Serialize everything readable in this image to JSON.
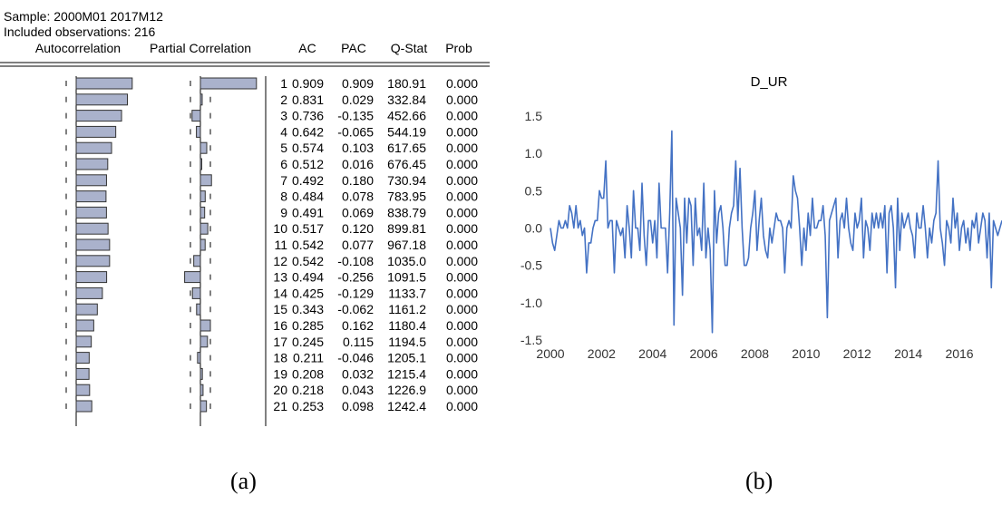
{
  "panel_labels": {
    "a": "(a)",
    "b": "(b)"
  },
  "correlogram": {
    "sample_line": "Sample: 2000M01 2017M12",
    "obs_line": "Included observations: 216",
    "headers": {
      "autocorrelation": "Autocorrelation",
      "partial": "Partial Correlation",
      "ac": "AC",
      "pac": "PAC",
      "qstat": "Q-Stat",
      "prob": "Prob"
    },
    "rows": [
      {
        "lag": "1",
        "ac": "0.909",
        "pac": "0.909",
        "q": "180.91",
        "prob": "0.000"
      },
      {
        "lag": "2",
        "ac": "0.831",
        "pac": "0.029",
        "q": "332.84",
        "prob": "0.000"
      },
      {
        "lag": "3",
        "ac": "0.736",
        "pac": "-0.135",
        "q": "452.66",
        "prob": "0.000"
      },
      {
        "lag": "4",
        "ac": "0.642",
        "pac": "-0.065",
        "q": "544.19",
        "prob": "0.000"
      },
      {
        "lag": "5",
        "ac": "0.574",
        "pac": "0.103",
        "q": "617.65",
        "prob": "0.000"
      },
      {
        "lag": "6",
        "ac": "0.512",
        "pac": "0.016",
        "q": "676.45",
        "prob": "0.000"
      },
      {
        "lag": "7",
        "ac": "0.492",
        "pac": "0.180",
        "q": "730.94",
        "prob": "0.000"
      },
      {
        "lag": "8",
        "ac": "0.484",
        "pac": "0.078",
        "q": "783.95",
        "prob": "0.000"
      },
      {
        "lag": "9",
        "ac": "0.491",
        "pac": "0.069",
        "q": "838.79",
        "prob": "0.000"
      },
      {
        "lag": "10",
        "ac": "0.517",
        "pac": "0.120",
        "q": "899.81",
        "prob": "0.000"
      },
      {
        "lag": "11",
        "ac": "0.542",
        "pac": "0.077",
        "q": "967.18",
        "prob": "0.000"
      },
      {
        "lag": "12",
        "ac": "0.542",
        "pac": "-0.108",
        "q": "1035.0",
        "prob": "0.000"
      },
      {
        "lag": "13",
        "ac": "0.494",
        "pac": "-0.256",
        "q": "1091.5",
        "prob": "0.000"
      },
      {
        "lag": "14",
        "ac": "0.425",
        "pac": "-0.129",
        "q": "1133.7",
        "prob": "0.000"
      },
      {
        "lag": "15",
        "ac": "0.343",
        "pac": "-0.062",
        "q": "1161.2",
        "prob": "0.000"
      },
      {
        "lag": "16",
        "ac": "0.285",
        "pac": "0.162",
        "q": "1180.4",
        "prob": "0.000"
      },
      {
        "lag": "17",
        "ac": "0.245",
        "pac": "0.115",
        "q": "1194.5",
        "prob": "0.000"
      },
      {
        "lag": "18",
        "ac": "0.211",
        "pac": "-0.046",
        "q": "1205.1",
        "prob": "0.000"
      },
      {
        "lag": "19",
        "ac": "0.208",
        "pac": "0.032",
        "q": "1215.4",
        "prob": "0.000"
      },
      {
        "lag": "20",
        "ac": "0.218",
        "pac": "0.043",
        "q": "1226.9",
        "prob": "0.000"
      },
      {
        "lag": "21",
        "ac": "0.253",
        "pac": "0.098",
        "q": "1242.4",
        "prob": "0.000"
      }
    ],
    "colors": {
      "bar_fill": "#aab2cc",
      "bar_stroke": "#333333"
    }
  },
  "chart_data": [
    {
      "type": "bar",
      "orientation": "horizontal",
      "series": [
        {
          "name": "Autocorrelation",
          "values": [
            0.909,
            0.831,
            0.736,
            0.642,
            0.574,
            0.512,
            0.492,
            0.484,
            0.491,
            0.517,
            0.542,
            0.542,
            0.494,
            0.425,
            0.343,
            0.285,
            0.245,
            0.211,
            0.208,
            0.218,
            0.253
          ]
        },
        {
          "name": "Partial Correlation",
          "values": [
            0.909,
            0.029,
            -0.135,
            -0.065,
            0.103,
            0.016,
            0.18,
            0.078,
            0.069,
            0.12,
            0.077,
            -0.108,
            -0.256,
            -0.129,
            -0.062,
            0.162,
            0.115,
            -0.046,
            0.032,
            0.043,
            0.098
          ]
        }
      ],
      "categories": [
        "1",
        "2",
        "3",
        "4",
        "5",
        "6",
        "7",
        "8",
        "9",
        "10",
        "11",
        "12",
        "13",
        "14",
        "15",
        "16",
        "17",
        "18",
        "19",
        "20",
        "21"
      ]
    },
    {
      "type": "line",
      "title": "D_UR",
      "x_start": "2000M01",
      "x_end": "2017M12",
      "xticks": [
        "2000",
        "2002",
        "2004",
        "2006",
        "2008",
        "2010",
        "2012",
        "2014",
        "2016"
      ],
      "yticks": [
        "1.5",
        "1.0",
        "0.5",
        "0.0",
        "-0.5",
        "-1.0",
        "-1.5"
      ],
      "ylim": [
        -1.5,
        1.5
      ],
      "grid": false,
      "color": "#4472c4",
      "series": [
        {
          "values": [
            0.0,
            -0.2,
            -0.3,
            -0.1,
            0.1,
            0.0,
            0.0,
            0.1,
            0.0,
            0.3,
            0.2,
            0.0,
            0.3,
            0.0,
            0.1,
            -0.1,
            0.0,
            -0.6,
            -0.2,
            -0.2,
            0.0,
            0.1,
            0.1,
            0.5,
            0.4,
            0.4,
            0.9,
            0.0,
            0.1,
            0.1,
            -0.6,
            0.1,
            0.0,
            -0.1,
            0.0,
            -0.4,
            0.3,
            0.0,
            -0.4,
            0.5,
            0.0,
            0.0,
            -0.3,
            0.6,
            -0.1,
            -0.5,
            0.1,
            0.1,
            -0.2,
            0.1,
            -0.4,
            0.6,
            0.0,
            0.0,
            0.0,
            -0.6,
            0.2,
            1.3,
            -1.3,
            0.4,
            0.2,
            0.0,
            -0.9,
            0.4,
            -0.2,
            0.4,
            0.3,
            -0.5,
            0.4,
            -0.1,
            0.0,
            -0.3,
            0.6,
            -0.4,
            0.0,
            -0.3,
            -1.4,
            0.5,
            -0.2,
            0.2,
            0.3,
            0.0,
            -0.5,
            -0.5,
            0.0,
            0.2,
            0.3,
            0.9,
            0.1,
            0.8,
            0.0,
            -0.5,
            -0.5,
            -0.4,
            0.0,
            0.2,
            0.5,
            -0.3,
            0.1,
            0.4,
            -0.1,
            -0.3,
            -0.4,
            0.0,
            -0.2,
            0.0,
            0.2,
            0.1,
            0.1,
            0.0,
            -0.6,
            0.0,
            0.1,
            0.0,
            0.7,
            0.5,
            0.4,
            0.0,
            -0.5,
            0.0,
            -0.3,
            0.2,
            -0.1,
            0.4,
            0.0,
            0.0,
            0.1,
            0.1,
            0.3,
            -0.1,
            -1.2,
            0.1,
            0.2,
            0.3,
            0.4,
            -0.4,
            0.1,
            0.2,
            0.0,
            0.4,
            0.0,
            -0.2,
            -0.3,
            0.2,
            0.0,
            0.1,
            0.4,
            -0.4,
            0.1,
            0.0,
            -0.3,
            0.2,
            0.0,
            0.2,
            0.0,
            0.2,
            0.0,
            0.3,
            -0.6,
            0.2,
            0.3,
            0.0,
            -0.8,
            0.4,
            -0.3,
            0.2,
            0.0,
            0.1,
            0.2,
            0.0,
            -0.1,
            -0.4,
            0.2,
            0.0,
            0.0,
            0.3,
            0.0,
            -0.4,
            0.0,
            -0.2,
            0.1,
            0.2,
            0.9,
            0.0,
            -0.2,
            -0.5,
            0.1,
            0.0,
            -0.2,
            0.4,
            0.0,
            0.2,
            -0.3,
            0.0,
            0.1,
            -0.2,
            0.0,
            -0.3,
            0.1,
            0.0,
            0.2,
            -0.2,
            0.0,
            0.2,
            0.1,
            -0.4,
            0.2,
            -0.8,
            0.1,
            0.0,
            -0.1,
            0.0,
            0.1
          ]
        }
      ]
    }
  ]
}
